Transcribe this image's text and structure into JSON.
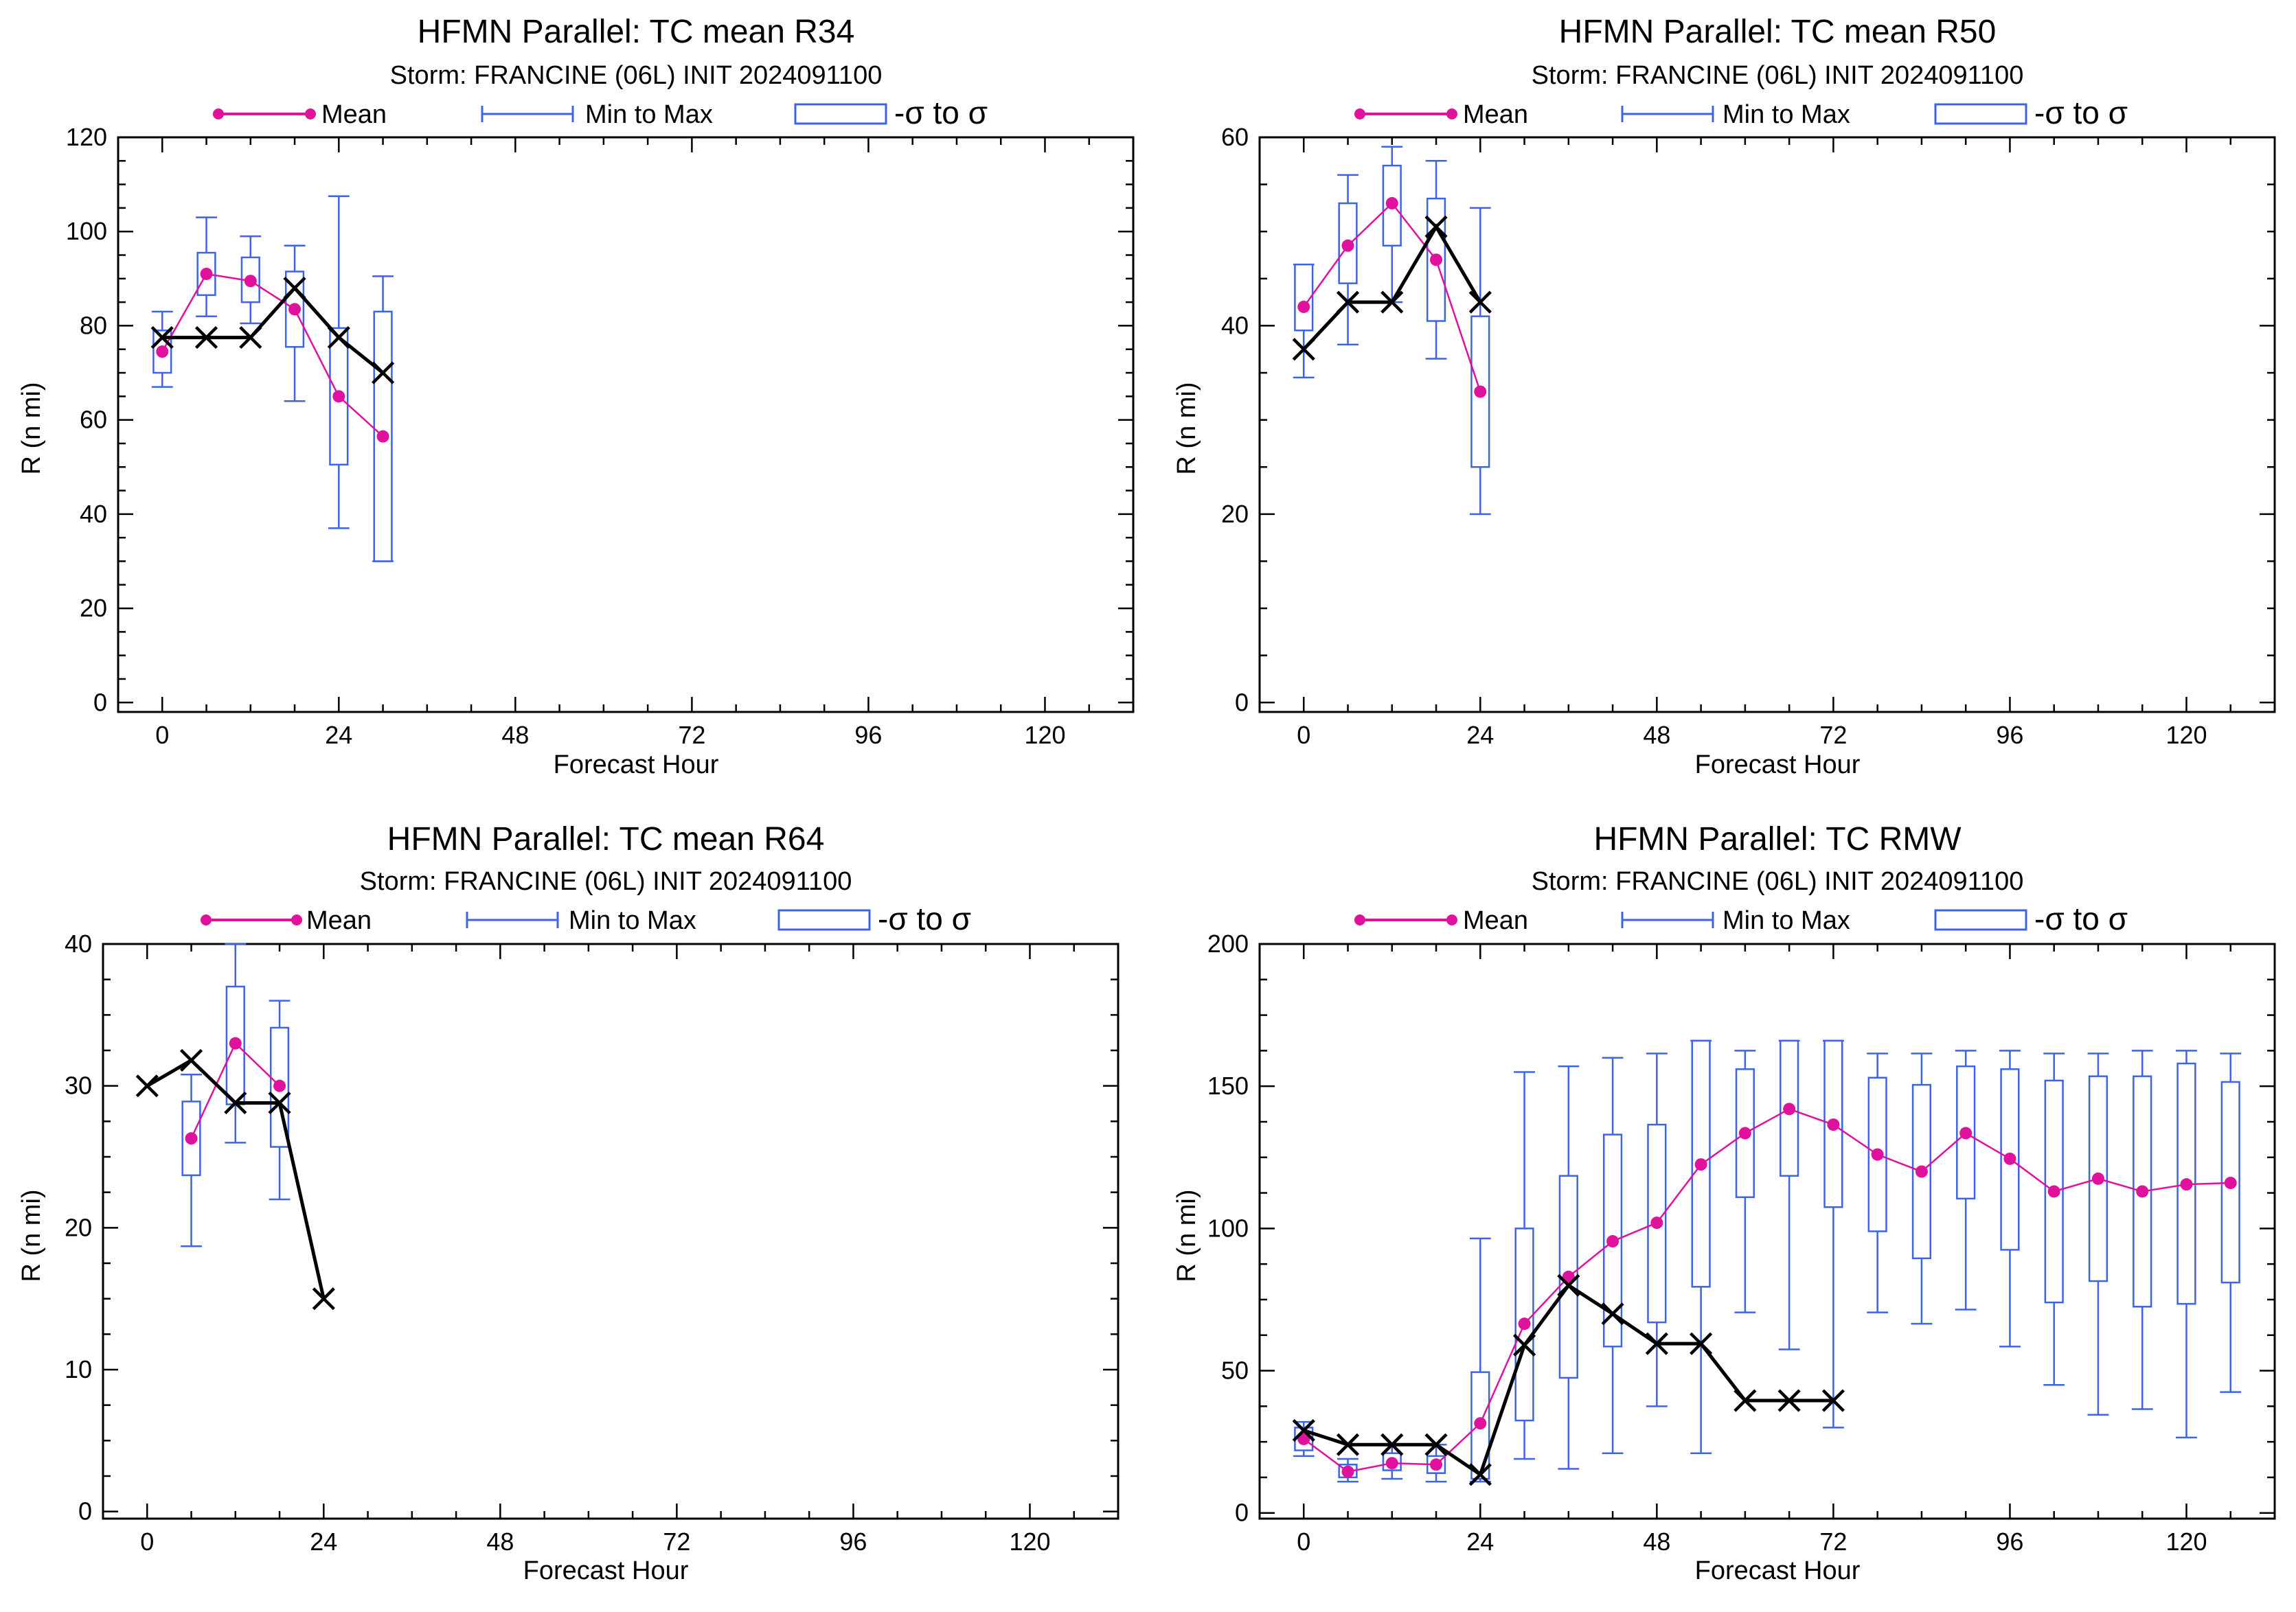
{
  "colors": {
    "mean": "#e0119d",
    "box": "#3d63e6",
    "official": "#000000",
    "axes": "#000000",
    "background": "#ffffff"
  },
  "chart_data": [
    {
      "type": "box",
      "title": "HFMN Parallel: TC mean R34",
      "subtitle": "Storm: FRANCINE (06L) INIT 2024091100",
      "xlabel": "Forecast Hour",
      "ylabel": "R (n mi)",
      "xlim": [
        -6,
        132
      ],
      "ylim": [
        -2,
        120
      ],
      "xticks": [
        0,
        24,
        48,
        72,
        96,
        120
      ],
      "yticks": [
        0,
        20,
        40,
        60,
        80,
        100,
        120
      ],
      "grid": false,
      "legend_position": "top-center",
      "legend": {
        "mean": "Mean",
        "minmax": "Min to Max",
        "sigma": "-σ to σ"
      },
      "stats": [
        {
          "x": 0,
          "mean": 74.5,
          "min": 67,
          "max": 83,
          "sigma_low": 70,
          "sigma_high": 79
        },
        {
          "x": 6,
          "mean": 91,
          "min": 82,
          "max": 103,
          "sigma_low": 86.5,
          "sigma_high": 95.5
        },
        {
          "x": 12,
          "mean": 89.5,
          "min": 80.5,
          "max": 99,
          "sigma_low": 85,
          "sigma_high": 94.5
        },
        {
          "x": 18,
          "mean": 83.5,
          "min": 64,
          "max": 97,
          "sigma_low": 75.5,
          "sigma_high": 91.5
        },
        {
          "x": 24,
          "mean": 65,
          "min": 37,
          "max": 107.5,
          "sigma_low": 50.5,
          "sigma_high": 79.5
        },
        {
          "x": 30,
          "mean": 56.5,
          "min": 30,
          "max": 90.5,
          "sigma_low": 30,
          "sigma_high": 83
        }
      ],
      "official": [
        {
          "x": 0,
          "y": 77.5
        },
        {
          "x": 6,
          "y": 77.5
        },
        {
          "x": 12,
          "y": 77.5
        },
        {
          "x": 18,
          "y": 88
        },
        {
          "x": 24,
          "y": 77.5
        },
        {
          "x": 30,
          "y": 70
        }
      ]
    },
    {
      "type": "box",
      "title": "HFMN Parallel: TC mean R50",
      "subtitle": "Storm: FRANCINE (06L) INIT 2024091100",
      "xlabel": "Forecast Hour",
      "ylabel": "R (n mi)",
      "xlim": [
        -6,
        132
      ],
      "ylim": [
        -1,
        60
      ],
      "xticks": [
        0,
        24,
        48,
        72,
        96,
        120
      ],
      "yticks": [
        0,
        20,
        40,
        60
      ],
      "grid": false,
      "legend_position": "top-center",
      "legend": {
        "mean": "Mean",
        "minmax": "Min to Max",
        "sigma": "-σ to σ"
      },
      "stats": [
        {
          "x": 0,
          "mean": 42,
          "min": 34.5,
          "max": 46.5,
          "sigma_low": 39.5,
          "sigma_high": 46.5
        },
        {
          "x": 6,
          "mean": 48.5,
          "min": 38,
          "max": 56,
          "sigma_low": 44.5,
          "sigma_high": 53
        },
        {
          "x": 12,
          "mean": 53,
          "min": 42.5,
          "max": 59,
          "sigma_low": 48.5,
          "sigma_high": 57
        },
        {
          "x": 18,
          "mean": 47,
          "min": 36.5,
          "max": 57.5,
          "sigma_low": 40.5,
          "sigma_high": 53.5
        },
        {
          "x": 24,
          "mean": 33,
          "min": 20,
          "max": 52.5,
          "sigma_low": 25,
          "sigma_high": 41
        }
      ],
      "official": [
        {
          "x": 0,
          "y": 37.5
        },
        {
          "x": 6,
          "y": 42.5
        },
        {
          "x": 12,
          "y": 42.5
        },
        {
          "x": 18,
          "y": 50.5
        },
        {
          "x": 24,
          "y": 42.5
        }
      ]
    },
    {
      "type": "box",
      "title": "HFMN Parallel: TC mean R64",
      "subtitle": "Storm: FRANCINE (06L) INIT 2024091100",
      "xlabel": "Forecast Hour",
      "ylabel": "R (n mi)",
      "xlim": [
        -6,
        132
      ],
      "ylim": [
        -0.5,
        40
      ],
      "xticks": [
        0,
        24,
        48,
        72,
        96,
        120
      ],
      "yticks": [
        0,
        10,
        20,
        30,
        40
      ],
      "grid": false,
      "legend_position": "top-center",
      "legend": {
        "mean": "Mean",
        "minmax": "Min to Max",
        "sigma": "-σ to σ"
      },
      "stats": [
        {
          "x": 6,
          "mean": 26.3,
          "min": 18.7,
          "max": 30.8,
          "sigma_low": 23.7,
          "sigma_high": 28.9
        },
        {
          "x": 12,
          "mean": 33,
          "min": 26,
          "max": 40,
          "sigma_low": 28.7,
          "sigma_high": 37
        },
        {
          "x": 18,
          "mean": 30,
          "min": 22,
          "max": 36,
          "sigma_low": 25.7,
          "sigma_high": 34.1
        }
      ],
      "official": [
        {
          "x": 0,
          "y": 30
        },
        {
          "x": 6,
          "y": 31.8
        },
        {
          "x": 12,
          "y": 28.8
        },
        {
          "x": 18,
          "y": 28.8
        },
        {
          "x": 24,
          "y": 15
        }
      ]
    },
    {
      "type": "box",
      "title": "HFMN Parallel: TC RMW",
      "subtitle": "Storm: FRANCINE (06L) INIT 2024091100",
      "xlabel": "Forecast Hour",
      "ylabel": "R (n mi)",
      "xlim": [
        -6,
        132
      ],
      "ylim": [
        -2,
        200
      ],
      "xticks": [
        0,
        24,
        48,
        72,
        96,
        120
      ],
      "yticks": [
        0,
        50,
        100,
        150,
        200
      ],
      "grid": false,
      "legend_position": "top-center",
      "legend": {
        "mean": "Mean",
        "minmax": "Min to Max",
        "sigma": "-σ to σ"
      },
      "stats": [
        {
          "x": 0,
          "mean": 26,
          "min": 20,
          "max": 32,
          "sigma_low": 22,
          "sigma_high": 30
        },
        {
          "x": 6,
          "mean": 14.5,
          "min": 11,
          "max": 19,
          "sigma_low": 12.5,
          "sigma_high": 17
        },
        {
          "x": 12,
          "mean": 17.5,
          "min": 12,
          "max": 24,
          "sigma_low": 15,
          "sigma_high": 21
        },
        {
          "x": 18,
          "mean": 17,
          "min": 11,
          "max": 24,
          "sigma_low": 14,
          "sigma_high": 20
        },
        {
          "x": 24,
          "mean": 31.5,
          "min": 11,
          "max": 96.5,
          "sigma_low": 12,
          "sigma_high": 49.5
        },
        {
          "x": 30,
          "mean": 66.5,
          "min": 19,
          "max": 155,
          "sigma_low": 32.5,
          "sigma_high": 100
        },
        {
          "x": 36,
          "mean": 83,
          "min": 15.5,
          "max": 157,
          "sigma_low": 47.5,
          "sigma_high": 118.5
        },
        {
          "x": 42,
          "mean": 95.5,
          "min": 21,
          "max": 160,
          "sigma_low": 58.5,
          "sigma_high": 133
        },
        {
          "x": 48,
          "mean": 102,
          "min": 37.5,
          "max": 161.5,
          "sigma_low": 67,
          "sigma_high": 136.5
        },
        {
          "x": 54,
          "mean": 122.5,
          "min": 21,
          "max": 166,
          "sigma_low": 79.5,
          "sigma_high": 166
        },
        {
          "x": 60,
          "mean": 133.5,
          "min": 70.5,
          "max": 162.5,
          "sigma_low": 111,
          "sigma_high": 156
        },
        {
          "x": 66,
          "mean": 142,
          "min": 57.5,
          "max": 166,
          "sigma_low": 118.5,
          "sigma_high": 166
        },
        {
          "x": 72,
          "mean": 136.5,
          "min": 30,
          "max": 166,
          "sigma_low": 107.5,
          "sigma_high": 166
        },
        {
          "x": 78,
          "mean": 126,
          "min": 70.5,
          "max": 161.5,
          "sigma_low": 99,
          "sigma_high": 153
        },
        {
          "x": 84,
          "mean": 120,
          "min": 66.5,
          "max": 161.5,
          "sigma_low": 89.5,
          "sigma_high": 150.5
        },
        {
          "x": 90,
          "mean": 133.5,
          "min": 71.5,
          "max": 162.5,
          "sigma_low": 110.5,
          "sigma_high": 157
        },
        {
          "x": 96,
          "mean": 124.5,
          "min": 58.5,
          "max": 162.5,
          "sigma_low": 92.5,
          "sigma_high": 156
        },
        {
          "x": 102,
          "mean": 113,
          "min": 45,
          "max": 161.5,
          "sigma_low": 74,
          "sigma_high": 152
        },
        {
          "x": 108,
          "mean": 117.5,
          "min": 34.5,
          "max": 161.5,
          "sigma_low": 81.5,
          "sigma_high": 153.5
        },
        {
          "x": 114,
          "mean": 113,
          "min": 36.5,
          "max": 162.5,
          "sigma_low": 72.5,
          "sigma_high": 153.5
        },
        {
          "x": 120,
          "mean": 115.5,
          "min": 26.5,
          "max": 162.5,
          "sigma_low": 73.5,
          "sigma_high": 158
        },
        {
          "x": 126,
          "mean": 116,
          "min": 42.5,
          "max": 161.5,
          "sigma_low": 81,
          "sigma_high": 151.5
        }
      ],
      "official": [
        {
          "x": 0,
          "y": 29
        },
        {
          "x": 6,
          "y": 24
        },
        {
          "x": 12,
          "y": 24
        },
        {
          "x": 18,
          "y": 24
        },
        {
          "x": 24,
          "y": 13.5
        },
        {
          "x": 30,
          "y": 59
        },
        {
          "x": 36,
          "y": 80
        },
        {
          "x": 42,
          "y": 70
        },
        {
          "x": 48,
          "y": 59.5
        },
        {
          "x": 54,
          "y": 59.5
        },
        {
          "x": 60,
          "y": 39.5
        },
        {
          "x": 66,
          "y": 39.5
        },
        {
          "x": 72,
          "y": 39.5
        }
      ]
    }
  ]
}
